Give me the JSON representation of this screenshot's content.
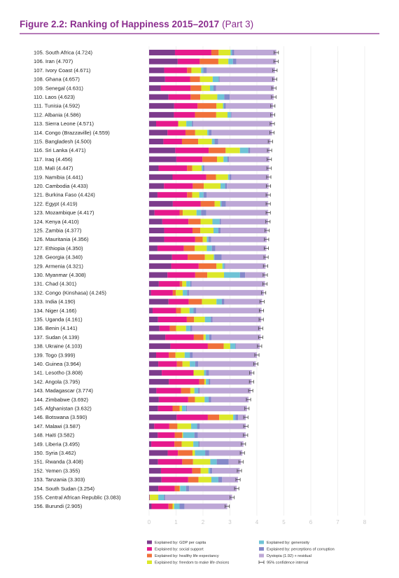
{
  "chart_data": {
    "type": "stacked-bar-horizontal",
    "title": "Figure 2.2: Ranking of Happiness 2015–2017",
    "subtitle": "(Part 3)",
    "categories": [
      "105. South Africa (4.724)",
      "106. Iran (4.707)",
      "107. Ivory Coast (4.671)",
      "108. Ghana (4.657)",
      "109. Senegal (4.631)",
      "110. Laos (4.623)",
      "111. Tunisia (4.592)",
      "112. Albania (4.586)",
      "113. Sierra Leone (4.571)",
      "114. Congo (Brazzaville) (4.559)",
      "115. Bangladesh (4.500)",
      "116. Sri Lanka (4.471)",
      "117. Iraq (4.456)",
      "118. Mali (4.447)",
      "119. Namibia (4.441)",
      "120. Cambodia (4.433)",
      "121. Burkina Faso (4.424)",
      "122. Egypt (4.419)",
      "123. Mozambique (4.417)",
      "124. Kenya (4.410)",
      "125. Zambia (4.377)",
      "126. Mauritania (4.356)",
      "127. Ethiopia (4.350)",
      "128. Georgia (4.340)",
      "129. Armenia (4.321)",
      "130. Myanmar (4.308)",
      "131. Chad (4.301)",
      "132. Congo (Kinshasa) (4.245)",
      "133. India (4.190)",
      "134. Niger (4.166)",
      "135. Uganda (4.161)",
      "136. Benin (4.141)",
      "137. Sudan (4.139)",
      "138. Ukraine (4.103)",
      "139. Togo (3.999)",
      "140. Guinea (3.964)",
      "141. Lesotho (3.808)",
      "142. Angola (3.795)",
      "143. Madagascar (3.774)",
      "144. Zimbabwe (3.692)",
      "145. Afghanistan (3.632)",
      "146. Botswana (3.590)",
      "147. Malawi (3.587)",
      "148. Haiti (3.582)",
      "149. Liberia (3.495)",
      "150. Syria (3.462)",
      "151. Rwanda (3.408)",
      "152. Yemen (3.355)",
      "153. Tanzania (3.303)",
      "154. South Sudan (3.254)",
      "155. Central African Republic (3.083)",
      "156. Burundi (2.905)"
    ],
    "series": [
      {
        "name": "Explained by: GDP per capita",
        "color": "#7d3c8c",
        "values": [
          0.96,
          1.06,
          0.56,
          0.59,
          0.43,
          0.72,
          0.93,
          0.92,
          0.26,
          0.68,
          0.53,
          0.97,
          1.01,
          0.35,
          0.87,
          0.55,
          0.31,
          0.88,
          0.2,
          0.49,
          0.56,
          0.56,
          0.31,
          0.85,
          0.82,
          0.68,
          0.36,
          0.07,
          0.72,
          0.13,
          0.33,
          0.38,
          0.6,
          0.79,
          0.26,
          0.34,
          0.47,
          0.73,
          0.27,
          0.36,
          0.33,
          1.02,
          0.19,
          0.32,
          0.08,
          0.69,
          0.33,
          0.44,
          0.46,
          0.34,
          0.02,
          0.09
        ]
      },
      {
        "name": "Explained by: social support",
        "color": "#e6198c",
        "values": [
          1.35,
          0.82,
          0.85,
          0.93,
          1.11,
          0.82,
          0.87,
          0.78,
          0.82,
          0.67,
          0.69,
          1.24,
          0.97,
          1.06,
          1.25,
          1.07,
          1.1,
          1.03,
          0.93,
          0.97,
          1.05,
          1.15,
          0.98,
          0.58,
          1.02,
          1.03,
          0.78,
          0.81,
          0.75,
          0.87,
          1.07,
          0.39,
          1.06,
          1.39,
          0.47,
          0.69,
          1.18,
          1.13,
          0.92,
          1.09,
          0.54,
          1.16,
          0.56,
          0.63,
          0.86,
          0.38,
          0.9,
          1.16,
          0.99,
          0.61,
          0.0,
          0.63
        ]
      },
      {
        "name": "Explained by: healthy life expectancy",
        "color": "#f0703a",
        "values": [
          0.27,
          0.69,
          0.16,
          0.37,
          0.4,
          0.36,
          0.7,
          0.79,
          0.0,
          0.36,
          0.6,
          0.63,
          0.54,
          0.19,
          0.36,
          0.41,
          0.19,
          0.52,
          0.12,
          0.45,
          0.29,
          0.28,
          0.4,
          0.64,
          0.66,
          0.45,
          0.09,
          0.11,
          0.49,
          0.18,
          0.27,
          0.23,
          0.36,
          0.59,
          0.25,
          0.21,
          0.0,
          0.19,
          0.34,
          0.25,
          0.26,
          0.42,
          0.3,
          0.28,
          0.27,
          0.54,
          0.4,
          0.31,
          0.38,
          0.18,
          0.01,
          0.15
        ]
      },
      {
        "name": "Explained by: freedom to make life choices",
        "color": "#dce82a",
        "values": [
          0.44,
          0.37,
          0.36,
          0.47,
          0.32,
          0.63,
          0.24,
          0.42,
          0.3,
          0.45,
          0.51,
          0.53,
          0.24,
          0.35,
          0.45,
          0.62,
          0.26,
          0.21,
          0.51,
          0.44,
          0.49,
          0.15,
          0.45,
          0.33,
          0.22,
          0.62,
          0.15,
          0.26,
          0.54,
          0.32,
          0.4,
          0.37,
          0.08,
          0.24,
          0.34,
          0.27,
          0.39,
          0.06,
          0.15,
          0.36,
          0.09,
          0.52,
          0.51,
          0.03,
          0.43,
          0.09,
          0.64,
          0.29,
          0.48,
          0.02,
          0.31,
          0.06
        ]
      },
      {
        "name": "Explained by: generosity",
        "color": "#6fc3d6",
        "values": [
          0.06,
          0.17,
          0.08,
          0.22,
          0.13,
          0.26,
          0.04,
          0.12,
          0.21,
          0.06,
          0.1,
          0.31,
          0.15,
          0.05,
          0.05,
          0.17,
          0.16,
          0.05,
          0.17,
          0.27,
          0.18,
          0.06,
          0.19,
          0.03,
          0.07,
          0.59,
          0.15,
          0.16,
          0.2,
          0.15,
          0.22,
          0.16,
          0.13,
          0.19,
          0.19,
          0.2,
          0.07,
          0.1,
          0.14,
          0.15,
          0.15,
          0.08,
          0.22,
          0.42,
          0.19,
          0.38,
          0.24,
          0.06,
          0.26,
          0.22,
          0.22,
          0.2
        ]
      },
      {
        "name": "Explained by: perceptions of corruption",
        "color": "#8589c9",
        "values": [
          0.08,
          0.13,
          0.13,
          0.04,
          0.09,
          0.2,
          0.07,
          0.03,
          0.05,
          0.1,
          0.13,
          0.07,
          0.05,
          0.05,
          0.07,
          0.07,
          0.11,
          0.16,
          0.19,
          0.05,
          0.08,
          0.1,
          0.13,
          0.26,
          0.03,
          0.19,
          0.05,
          0.07,
          0.09,
          0.1,
          0.06,
          0.07,
          0.09,
          0.03,
          0.11,
          0.11,
          0.11,
          0.06,
          0.06,
          0.09,
          0.04,
          0.1,
          0.1,
          0.13,
          0.04,
          0.15,
          0.44,
          0.08,
          0.14,
          0.11,
          0.04,
          0.18
        ]
      },
      {
        "name": "Dystopia (1.92) + residual",
        "color": "#bda7d6",
        "values": [
          1.56,
          1.47,
          2.53,
          2.04,
          2.15,
          1.63,
          1.74,
          1.53,
          2.93,
          2.24,
          1.94,
          0.72,
          1.5,
          2.4,
          1.39,
          1.54,
          2.29,
          1.57,
          2.3,
          1.74,
          1.73,
          2.06,
          1.89,
          1.65,
          1.5,
          0.75,
          2.72,
          2.77,
          1.4,
          2.42,
          1.81,
          2.54,
          1.82,
          0.87,
          2.38,
          2.14,
          1.59,
          1.53,
          1.89,
          1.39,
          2.22,
          0.29,
          1.71,
          1.77,
          1.63,
          1.23,
          0.46,
          1.02,
          0.59,
          1.77,
          2.48,
          1.59
        ]
      }
    ],
    "confidence_interval": {
      "name": "95% confidence interval",
      "color": "#444444",
      "low": [
        4.64,
        4.63,
        4.59,
        4.58,
        4.55,
        4.54,
        4.51,
        4.51,
        4.49,
        4.48,
        4.42,
        4.39,
        4.38,
        4.37,
        4.36,
        4.35,
        4.34,
        4.34,
        4.34,
        4.33,
        4.3,
        4.28,
        4.27,
        4.26,
        4.24,
        4.23,
        4.22,
        4.17,
        4.11,
        4.09,
        4.08,
        4.06,
        4.06,
        4.02,
        3.92,
        3.88,
        3.73,
        3.72,
        3.69,
        3.61,
        3.55,
        3.51,
        3.51,
        3.5,
        3.42,
        3.38,
        3.33,
        3.27,
        3.22,
        3.17,
        3.0,
        2.82
      ],
      "high": [
        4.8,
        4.79,
        4.75,
        4.74,
        4.71,
        4.71,
        4.67,
        4.66,
        4.65,
        4.64,
        4.58,
        4.55,
        4.54,
        4.53,
        4.52,
        4.51,
        4.5,
        4.5,
        4.5,
        4.49,
        4.46,
        4.44,
        4.43,
        4.42,
        4.4,
        4.39,
        4.38,
        4.33,
        4.27,
        4.25,
        4.24,
        4.22,
        4.22,
        4.18,
        4.08,
        4.04,
        3.89,
        3.88,
        3.85,
        3.77,
        3.71,
        3.67,
        3.67,
        3.66,
        3.58,
        3.54,
        3.49,
        3.43,
        3.38,
        3.33,
        3.16,
        2.98
      ]
    },
    "xlim": [
      0,
      8
    ],
    "xticks": [
      0,
      1,
      2,
      3,
      4,
      5,
      6,
      7,
      8
    ],
    "grid": true
  }
}
